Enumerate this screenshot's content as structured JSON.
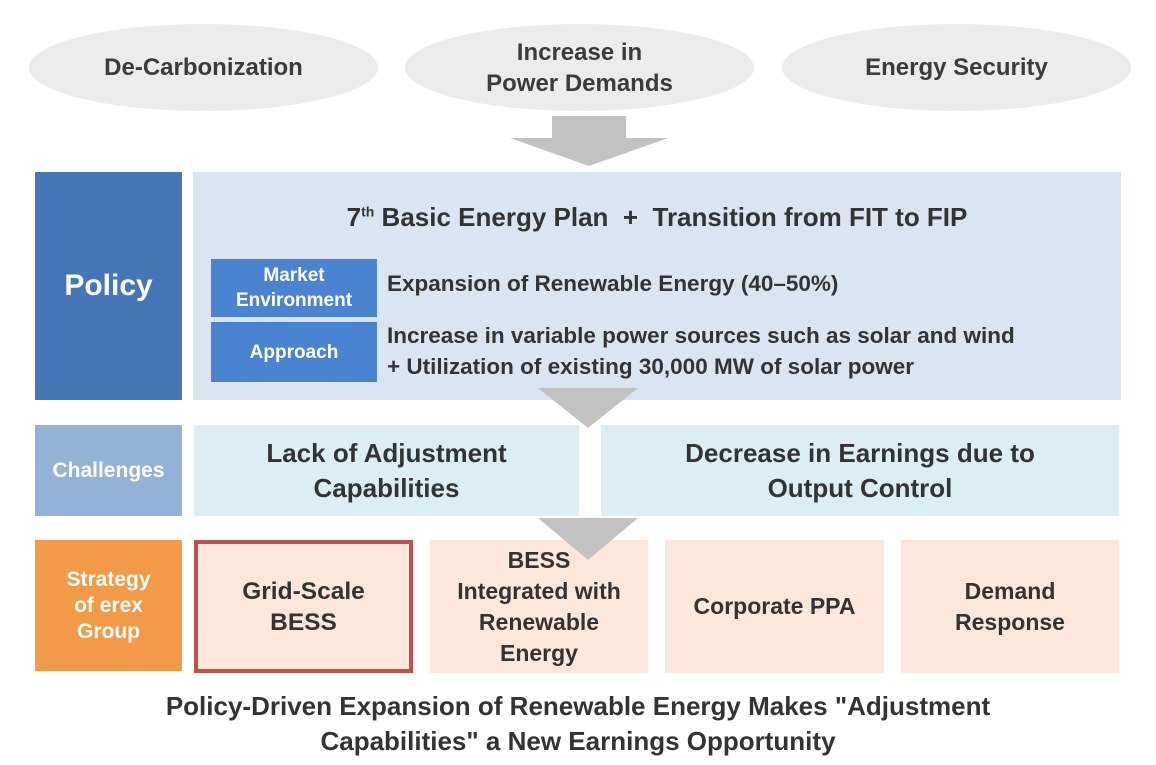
{
  "drivers": [
    {
      "line1": "De-Carbonization"
    },
    {
      "line1": "Increase in",
      "line2": "Power Demands"
    },
    {
      "line1": "Energy Security"
    }
  ],
  "policy": {
    "label": "Policy",
    "title_num": "7",
    "title_sup": "th",
    "title_rest": " Basic Energy Plan  +  Transition from FIT to FIP",
    "market": {
      "tag_line1": "Market",
      "tag_line2": "Environment",
      "text": "Expansion of Renewable Energy (40–50%)"
    },
    "approach": {
      "tag": "Approach",
      "text_line1": "Increase in variable power sources such as solar and wind",
      "text_line2": "+ Utilization of existing 30,000 MW of solar power"
    }
  },
  "challenges": {
    "label": "Challenges",
    "items": [
      {
        "line1": "Lack of Adjustment",
        "line2": "Capabilities"
      },
      {
        "line1": "Decrease in Earnings due to",
        "line2": "Output Control"
      }
    ]
  },
  "strategy": {
    "label_line1": "Strategy",
    "label_line2": "of erex",
    "label_line3": "Group",
    "items": [
      {
        "lines": [
          "Grid-Scale",
          "BESS"
        ],
        "highlighted": true
      },
      {
        "lines": [
          "BESS",
          "Integrated with",
          "Renewable",
          "Energy"
        ]
      },
      {
        "lines": [
          "Corporate PPA"
        ]
      },
      {
        "lines": [
          "Demand",
          "Response"
        ]
      }
    ]
  },
  "footer": {
    "line1": "Policy-Driven Expansion of Renewable Energy Makes \"Adjustment",
    "line2": "Capabilities\" a New Earnings Opportunity"
  },
  "colors": {
    "policy": "#4577b8",
    "challenges": "#94b1d6",
    "strategy": "#f29a48",
    "highlight_border": "#c0504d"
  }
}
